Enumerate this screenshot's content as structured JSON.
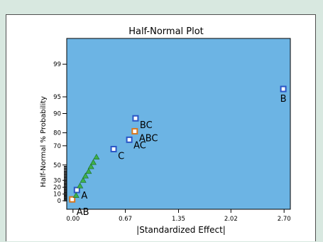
{
  "chart_data": {
    "type": "scatter",
    "title": "Half-Normal Plot",
    "xlabel": "|Standardized Effect|",
    "ylabel": "Half-Normal % Probability",
    "xlim": [
      -0.08,
      2.78
    ],
    "x_ticks": [
      {
        "value": 0.0,
        "label": "0.00"
      },
      {
        "value": 0.67,
        "label": "0.67"
      },
      {
        "value": 1.35,
        "label": "1.35"
      },
      {
        "value": 2.02,
        "label": "2.02"
      },
      {
        "value": 2.7,
        "label": "2.70"
      }
    ],
    "y_ticks": [
      {
        "value": 0,
        "label": "0"
      },
      {
        "value": 10,
        "label": "10"
      },
      {
        "value": 20,
        "label": "20"
      },
      {
        "value": 30,
        "label": "30"
      },
      {
        "value": 50,
        "label": "50"
      },
      {
        "value": 70,
        "label": "70"
      },
      {
        "value": 80,
        "label": "80"
      },
      {
        "value": 90,
        "label": "90"
      },
      {
        "value": 95,
        "label": "95"
      },
      {
        "value": 99,
        "label": "99"
      }
    ],
    "background_color": "#6cb4e4",
    "series": [
      {
        "role": "effects",
        "color": "#2a56c6",
        "marker": "square",
        "points": [
          {
            "label": "A",
            "x": 0.05,
            "y": 16
          },
          {
            "label": "AC",
            "x": 0.72,
            "y": 75
          },
          {
            "label": "C",
            "x": 0.52,
            "y": 67
          },
          {
            "label": "BC",
            "x": 0.8,
            "y": 88
          },
          {
            "label": "B",
            "x": 2.69,
            "y": 96.5
          }
        ]
      },
      {
        "role": "aliased",
        "color": "#d8761c",
        "marker": "square",
        "points": [
          {
            "label": "AB",
            "x": -0.01,
            "y": 2
          },
          {
            "label": "ABC",
            "x": 0.79,
            "y": 81
          }
        ]
      },
      {
        "role": "error",
        "color": "#3cb04a",
        "marker": "triangle",
        "points": [
          {
            "x": 0.04,
            "y": 8
          },
          {
            "x": 0.09,
            "y": 22
          },
          {
            "x": 0.13,
            "y": 30
          },
          {
            "x": 0.16,
            "y": 36
          },
          {
            "x": 0.2,
            "y": 42
          },
          {
            "x": 0.23,
            "y": 48
          },
          {
            "x": 0.26,
            "y": 53
          },
          {
            "x": 0.3,
            "y": 59
          }
        ]
      }
    ]
  }
}
